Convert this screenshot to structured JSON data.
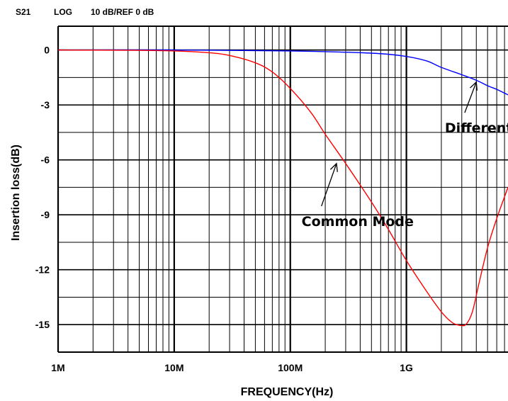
{
  "header": {
    "param": "S21",
    "format": "LOG",
    "scale": "10 dB/REF 0 dB"
  },
  "chart_data": {
    "type": "line",
    "xlabel": "FREQUENCY(Hz)",
    "ylabel": "Insertion loss(dB)",
    "x_scale": "log",
    "xlim": [
      1000000,
      7500000000
    ],
    "ylim": [
      -16.5,
      1.3
    ],
    "grid": true,
    "x_ticks": [
      {
        "value": 1000000,
        "label": "1M"
      },
      {
        "value": 10000000,
        "label": "10M"
      },
      {
        "value": 100000000,
        "label": "100M"
      },
      {
        "value": 1000000000,
        "label": "1G"
      }
    ],
    "y_ticks": [
      {
        "value": 0,
        "label": "0"
      },
      {
        "value": -3,
        "label": "-3"
      },
      {
        "value": -6,
        "label": "-6"
      },
      {
        "value": -9,
        "label": "-9"
      },
      {
        "value": -12,
        "label": "-12"
      },
      {
        "value": -15,
        "label": "-15"
      }
    ],
    "series": [
      {
        "color": "#0000ff",
        "x": [
          1000000,
          10000000,
          100000000,
          300000000,
          600000000,
          1000000000,
          1500000000,
          2000000000,
          3000000000,
          4000000000,
          5000000000,
          6000000000,
          7500000000
        ],
        "y": [
          0,
          0,
          -0.05,
          -0.12,
          -0.2,
          -0.35,
          -0.6,
          -0.95,
          -1.35,
          -1.65,
          -1.95,
          -2.15,
          -2.45
        ]
      },
      {
        "color": "#ff0000",
        "x": [
          1000000,
          5000000,
          10000000,
          20000000,
          30000000,
          50000000,
          70000000,
          100000000,
          150000000,
          200000000,
          300000000,
          500000000,
          700000000,
          1000000000,
          1500000000,
          2000000000,
          2500000000,
          3000000000,
          3300000000,
          3700000000,
          4200000000,
          5000000000,
          6000000000,
          7500000000
        ],
        "y": [
          0,
          -0.02,
          -0.05,
          -0.15,
          -0.3,
          -0.7,
          -1.2,
          -2.1,
          -3.4,
          -4.6,
          -6.2,
          -8.3,
          -9.8,
          -11.5,
          -13.2,
          -14.3,
          -14.9,
          -15.05,
          -14.95,
          -14.3,
          -12.8,
          -10.8,
          -9.2,
          -7.5
        ]
      }
    ],
    "annotations": [
      {
        "text": "Differential Mode",
        "x": 4000000000,
        "y": -1.75,
        "text_x": 2400000000,
        "text_y": -4.2
      },
      {
        "text": "Common Mode",
        "x": 250000000,
        "y": -6.2,
        "text_x": 140000000,
        "text_y": -9.3
      }
    ]
  }
}
